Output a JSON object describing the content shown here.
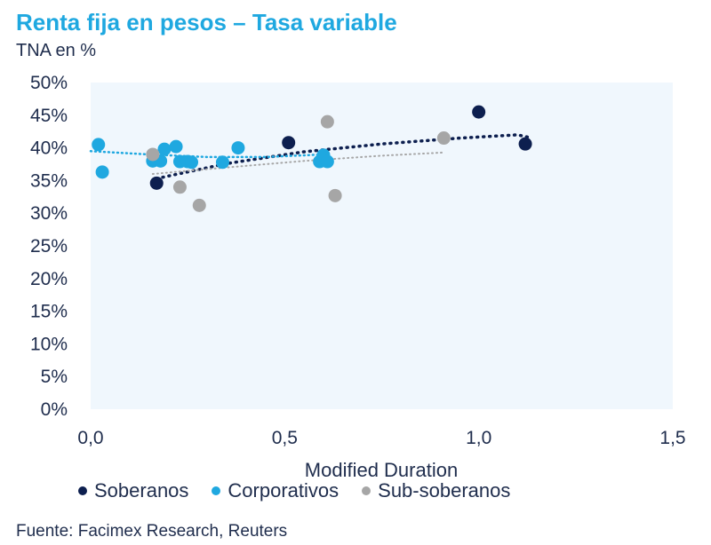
{
  "header": {
    "title": "Renta fija en pesos – Tasa variable",
    "subtitle": "TNA en %"
  },
  "footer": {
    "source": "Fuente: Facimex Research, Reuters"
  },
  "chart_data": {
    "type": "scatter",
    "title": "Renta fija en pesos – Tasa variable",
    "subtitle": "TNA en %",
    "xlabel": "Modified Duration",
    "ylabel": "TNA en %",
    "xlim": [
      0,
      1.5
    ],
    "ylim": [
      0,
      50
    ],
    "x_ticks": [
      0,
      0.5,
      1,
      1.5
    ],
    "x_tick_labels": [
      "0,0",
      "0,5",
      "1,0",
      "1,5"
    ],
    "y_ticks": [
      0,
      5,
      10,
      15,
      20,
      25,
      30,
      35,
      40,
      45,
      50
    ],
    "y_tick_labels": [
      "0%",
      "5%",
      "10%",
      "15%",
      "20%",
      "25%",
      "30%",
      "35%",
      "40%",
      "45%",
      "50%"
    ],
    "legend_position": "bottom",
    "plot_background": "#f0f7fd",
    "series": [
      {
        "name": "Soberanos",
        "color": "#0d1f4f",
        "trend": "dotted",
        "points": [
          [
            0.17,
            34.6
          ],
          [
            0.51,
            40.8
          ],
          [
            1.0,
            45.5
          ],
          [
            1.12,
            40.6
          ]
        ],
        "trendline": [
          [
            0.17,
            35.3
          ],
          [
            0.35,
            37.6
          ],
          [
            0.55,
            39.4
          ],
          [
            0.75,
            40.6
          ],
          [
            0.95,
            41.5
          ],
          [
            1.1,
            42.0
          ],
          [
            1.13,
            41.6
          ]
        ]
      },
      {
        "name": "Corporativos",
        "color": "#1fa8e0",
        "trend": "dotted",
        "points": [
          [
            0.02,
            40.5
          ],
          [
            0.03,
            36.3
          ],
          [
            0.16,
            38.0
          ],
          [
            0.18,
            38.0
          ],
          [
            0.19,
            39.8
          ],
          [
            0.22,
            40.2
          ],
          [
            0.23,
            37.9
          ],
          [
            0.25,
            37.9
          ],
          [
            0.26,
            37.8
          ],
          [
            0.34,
            37.8
          ],
          [
            0.38,
            40.0
          ],
          [
            0.59,
            37.9
          ],
          [
            0.6,
            38.9
          ],
          [
            0.61,
            37.9
          ]
        ],
        "trendline": [
          [
            0.0,
            39.5
          ],
          [
            0.15,
            39.0
          ],
          [
            0.3,
            38.6
          ],
          [
            0.45,
            38.6
          ],
          [
            0.6,
            39.0
          ]
        ]
      },
      {
        "name": "Sub-soberanos",
        "color": "#a6a6a6",
        "trend": "dotted",
        "points": [
          [
            0.16,
            39.0
          ],
          [
            0.23,
            34.0
          ],
          [
            0.28,
            31.2
          ],
          [
            0.61,
            44.0
          ],
          [
            0.63,
            32.7
          ],
          [
            0.91,
            41.5
          ]
        ],
        "trendline": [
          [
            0.16,
            36.0
          ],
          [
            0.35,
            37.0
          ],
          [
            0.55,
            38.0
          ],
          [
            0.75,
            38.8
          ],
          [
            0.91,
            39.3
          ]
        ]
      }
    ]
  }
}
